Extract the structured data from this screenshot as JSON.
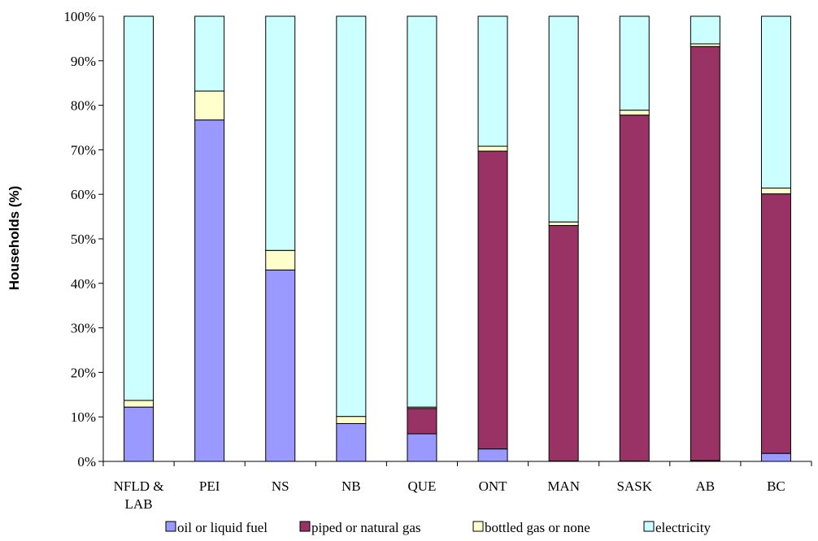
{
  "chart_data": {
    "type": "bar",
    "stacked": true,
    "title": "",
    "xlabel": "",
    "ylabel": "Households (%)",
    "ylim": [
      0,
      100
    ],
    "y_ticks": [
      "0%",
      "10%",
      "20%",
      "30%",
      "40%",
      "50%",
      "60%",
      "70%",
      "80%",
      "90%",
      "100%"
    ],
    "grid": false,
    "legend_position": "bottom",
    "categories": [
      [
        "NFLD &",
        "LAB"
      ],
      [
        "PEI"
      ],
      [
        "NS"
      ],
      [
        "NB"
      ],
      [
        "QUE"
      ],
      [
        "ONT"
      ],
      [
        "MAN"
      ],
      [
        "SASK"
      ],
      [
        "AB"
      ],
      [
        "BC"
      ]
    ],
    "series": [
      {
        "name": "oil or liquid fuel",
        "color": "#9999ff",
        "values": [
          12.2,
          76.7,
          43.0,
          8.5,
          6.2,
          2.8,
          0.1,
          0.1,
          0.2,
          1.8
        ]
      },
      {
        "name": "piped or natural gas",
        "color": "#993366",
        "values": [
          0.0,
          0.0,
          0.0,
          0.0,
          5.7,
          66.9,
          52.9,
          77.7,
          93.0,
          58.3
        ]
      },
      {
        "name": "bottled gas or none",
        "color": "#ffffcc",
        "values": [
          1.5,
          6.5,
          4.4,
          1.6,
          0.3,
          1.1,
          0.8,
          1.1,
          0.6,
          1.3
        ]
      },
      {
        "name": "electricity",
        "color": "#ccffff",
        "values": [
          86.3,
          16.8,
          52.6,
          89.9,
          87.8,
          29.2,
          46.2,
          21.1,
          6.2,
          38.6
        ]
      }
    ]
  }
}
